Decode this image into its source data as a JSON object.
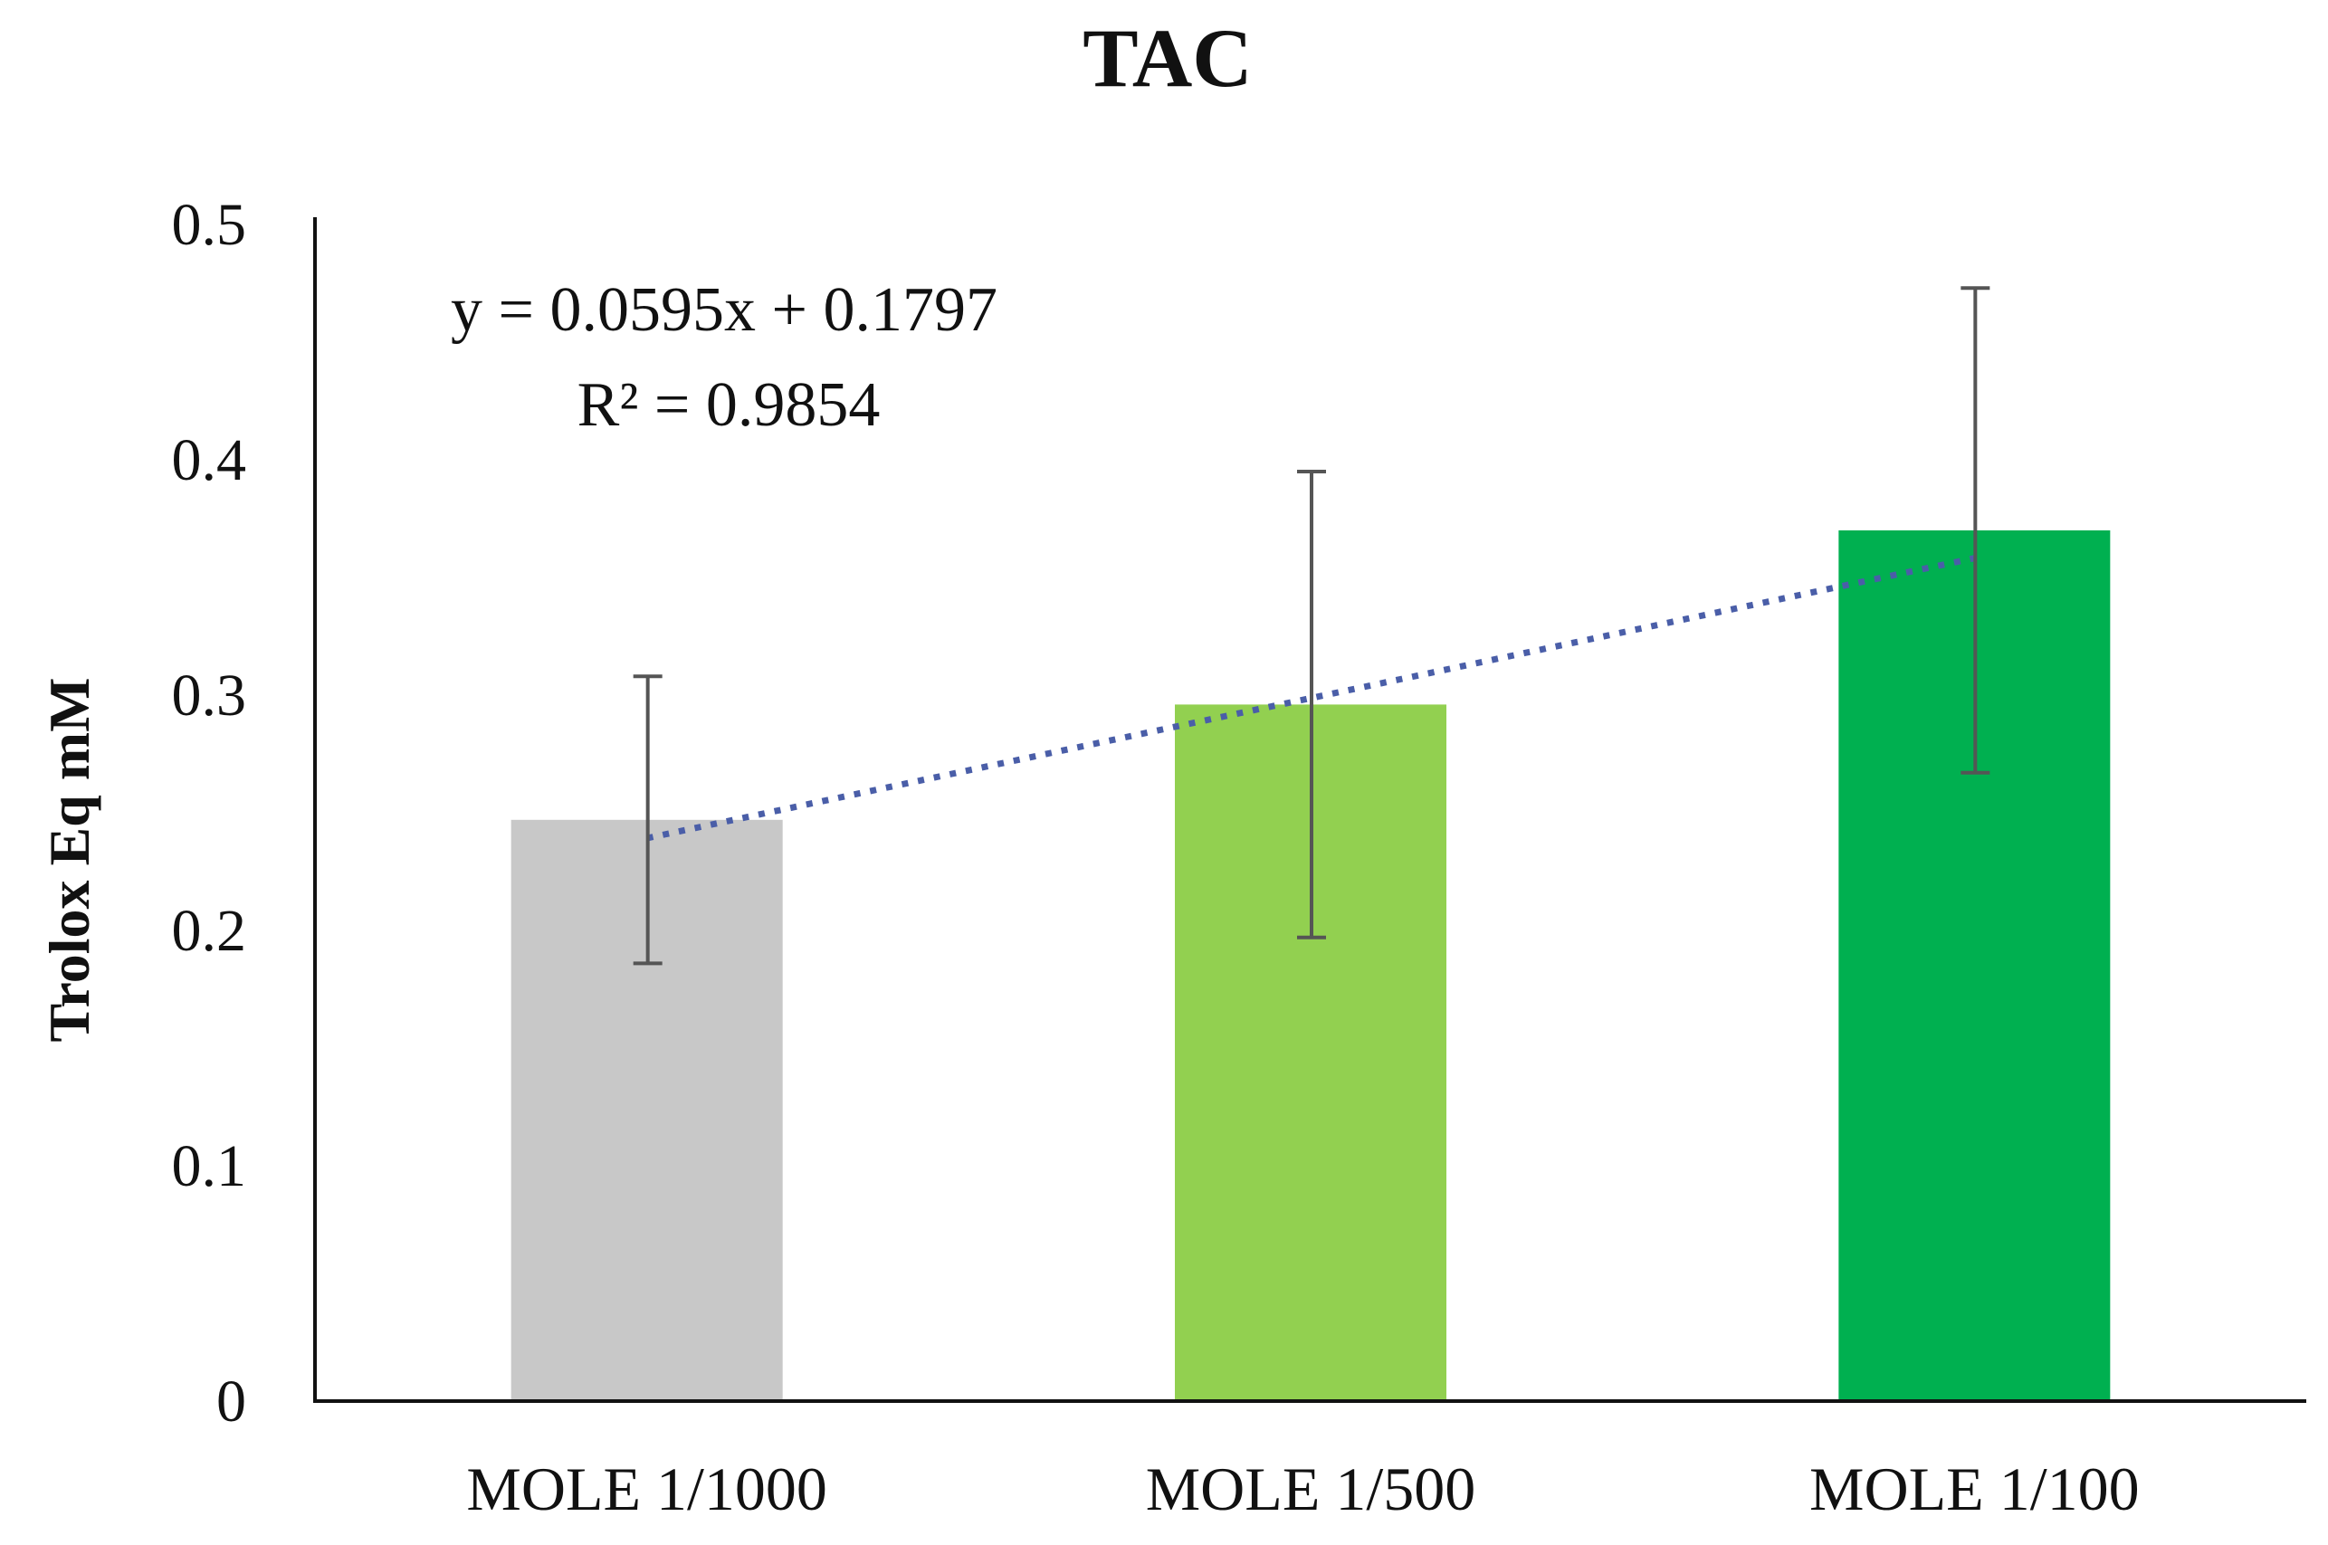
{
  "chart_data": {
    "type": "bar",
    "title": "TAC",
    "ylabel": "Trolox Eq mM",
    "xlabel": "",
    "categories": [
      "MOLE 1/1000",
      "MOLE 1/500",
      "MOLE 1/100"
    ],
    "values": [
      0.247,
      0.296,
      0.37
    ],
    "errors": [
      0.061,
      0.099,
      0.103
    ],
    "bar_colors": [
      "#c8c8c8",
      "#92d050",
      "#00b050"
    ],
    "ylim": [
      0,
      0.5
    ],
    "yticks": [
      0,
      0.1,
      0.2,
      0.3,
      0.4,
      0.5
    ],
    "ytick_labels": [
      "0",
      "0.1",
      "0.2",
      "0.3",
      "0.4",
      "0.5"
    ],
    "grid": false,
    "trendline": {
      "type": "linear",
      "slope": 0.0595,
      "intercept": 0.1797,
      "color": "#4a5ea8",
      "equation_label": "y = 0.0595x + 0.1797",
      "r2_label": "R² = 0.9854"
    },
    "error_bar_color": "#555555",
    "axis_color": "#111111"
  }
}
